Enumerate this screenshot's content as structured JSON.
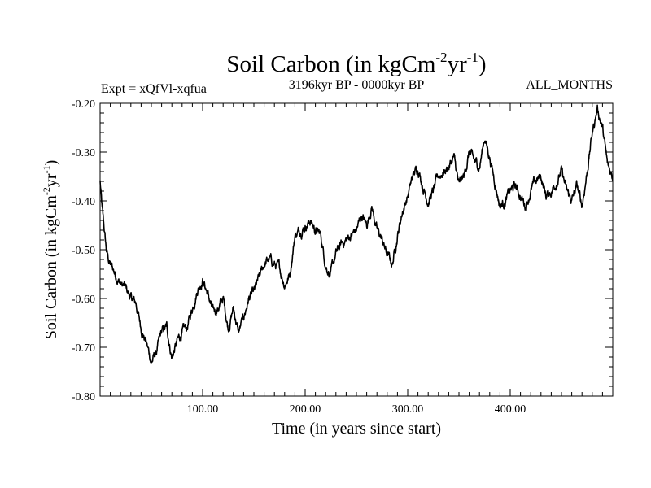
{
  "chart_data": {
    "type": "line",
    "title": {
      "main": "Soil Carbon (in kgCm",
      "sup1": "-2",
      "mid": "yr",
      "sup2": "-1",
      "end": ")"
    },
    "subtitle_left": "Expt = xQfVl-xqfua",
    "subtitle_center": "3196kyr BP - 0000kyr BP",
    "subtitle_right": "ALL_MONTHS",
    "xlabel": "Time (in years since start)",
    "ylabel": {
      "main": "Soil Carbon (in kgCm",
      "sup1": "-2",
      "mid": "yr",
      "sup2": "-1",
      "end": ")"
    },
    "xlim": [
      0,
      500
    ],
    "ylim": [
      -0.8,
      -0.2
    ],
    "xticks": [
      {
        "value": 100,
        "label": "100.00"
      },
      {
        "value": 200,
        "label": "200.00"
      },
      {
        "value": 300,
        "label": "300.00"
      },
      {
        "value": 400,
        "label": "400.00"
      }
    ],
    "yticks": [
      {
        "value": -0.2,
        "label": "-0.20"
      },
      {
        "value": -0.3,
        "label": "-0.30"
      },
      {
        "value": -0.4,
        "label": "-0.40"
      },
      {
        "value": -0.5,
        "label": "-0.50"
      },
      {
        "value": -0.6,
        "label": "-0.60"
      },
      {
        "value": -0.7,
        "label": "-0.70"
      },
      {
        "value": -0.8,
        "label": "-0.80"
      }
    ],
    "series": [
      {
        "name": "Soil Carbon",
        "color": "#000000",
        "x": [
          0,
          2,
          4,
          6,
          8,
          10,
          15,
          20,
          25,
          30,
          35,
          40,
          45,
          50,
          55,
          60,
          65,
          70,
          75,
          80,
          85,
          90,
          95,
          100,
          105,
          110,
          115,
          120,
          125,
          130,
          135,
          140,
          145,
          150,
          155,
          160,
          165,
          170,
          175,
          180,
          185,
          190,
          195,
          200,
          205,
          210,
          215,
          220,
          225,
          230,
          235,
          240,
          245,
          250,
          255,
          260,
          265,
          270,
          275,
          280,
          285,
          290,
          295,
          300,
          305,
          310,
          315,
          320,
          325,
          330,
          335,
          340,
          345,
          350,
          355,
          360,
          365,
          370,
          375,
          380,
          385,
          390,
          395,
          400,
          405,
          410,
          415,
          420,
          425,
          430,
          435,
          440,
          445,
          450,
          455,
          460,
          465,
          470,
          475,
          480,
          485,
          490,
          495,
          500
        ],
        "y": [
          -0.36,
          -0.42,
          -0.46,
          -0.5,
          -0.52,
          -0.53,
          -0.55,
          -0.57,
          -0.58,
          -0.6,
          -0.61,
          -0.66,
          -0.69,
          -0.73,
          -0.71,
          -0.67,
          -0.66,
          -0.72,
          -0.69,
          -0.67,
          -0.66,
          -0.62,
          -0.58,
          -0.56,
          -0.59,
          -0.63,
          -0.62,
          -0.6,
          -0.66,
          -0.62,
          -0.67,
          -0.64,
          -0.6,
          -0.59,
          -0.56,
          -0.53,
          -0.52,
          -0.53,
          -0.54,
          -0.57,
          -0.55,
          -0.47,
          -0.46,
          -0.45,
          -0.44,
          -0.46,
          -0.47,
          -0.53,
          -0.55,
          -0.51,
          -0.49,
          -0.48,
          -0.47,
          -0.46,
          -0.43,
          -0.45,
          -0.41,
          -0.46,
          -0.48,
          -0.51,
          -0.53,
          -0.47,
          -0.42,
          -0.39,
          -0.35,
          -0.33,
          -0.37,
          -0.4,
          -0.38,
          -0.35,
          -0.34,
          -0.33,
          -0.31,
          -0.37,
          -0.35,
          -0.3,
          -0.32,
          -0.33,
          -0.27,
          -0.31,
          -0.36,
          -0.41,
          -0.4,
          -0.38,
          -0.37,
          -0.39,
          -0.41,
          -0.38,
          -0.36,
          -0.35,
          -0.39,
          -0.38,
          -0.36,
          -0.34,
          -0.38,
          -0.4,
          -0.37,
          -0.41,
          -0.34,
          -0.26,
          -0.21,
          -0.25,
          -0.33,
          -0.35
        ]
      }
    ]
  }
}
